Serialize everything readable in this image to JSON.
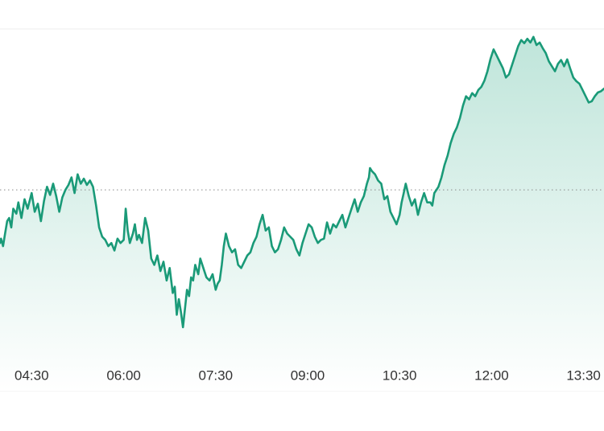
{
  "chart_data": {
    "type": "area",
    "title": "",
    "xlabel": "",
    "ylabel": "",
    "x_ticks": [
      "04:30",
      "06:00",
      "07:30",
      "09:00",
      "10:30",
      "12:00",
      "13:30"
    ],
    "x_domain": [
      "03:59",
      "13:50"
    ],
    "reference_line": {
      "style": "dotted",
      "value": 0
    },
    "y_range": [
      -265,
      250
    ],
    "grid": false,
    "legend": "none",
    "colors": {
      "line": "#1a9a78",
      "fill_top": "#bfe5da",
      "fill_bottom": "#ffffff",
      "reference": "#8a8a8a",
      "frame": "#ececec",
      "ticks": "#333333"
    },
    "series": [
      {
        "points": [
          [
            "03:59",
            -85
          ],
          [
            "04:00",
            -78
          ],
          [
            "04:02",
            -90
          ],
          [
            "04:04",
            -70
          ],
          [
            "04:06",
            -50
          ],
          [
            "04:08",
            -45
          ],
          [
            "04:10",
            -60
          ],
          [
            "04:12",
            -30
          ],
          [
            "04:15",
            -38
          ],
          [
            "04:17",
            -20
          ],
          [
            "04:20",
            -45
          ],
          [
            "04:23",
            -15
          ],
          [
            "04:26",
            -30
          ],
          [
            "04:30",
            -5
          ],
          [
            "04:33",
            -35
          ],
          [
            "04:36",
            -22
          ],
          [
            "04:39",
            -50
          ],
          [
            "04:42",
            -18
          ],
          [
            "04:45",
            5
          ],
          [
            "04:48",
            -8
          ],
          [
            "04:51",
            10
          ],
          [
            "04:54",
            -10
          ],
          [
            "04:57",
            -35
          ],
          [
            "05:00",
            -12
          ],
          [
            "05:03",
            0
          ],
          [
            "05:06",
            8
          ],
          [
            "05:09",
            20
          ],
          [
            "05:12",
            -5
          ],
          [
            "05:15",
            25
          ],
          [
            "05:18",
            10
          ],
          [
            "05:21",
            18
          ],
          [
            "05:24",
            8
          ],
          [
            "05:27",
            15
          ],
          [
            "05:30",
            5
          ],
          [
            "05:33",
            -25
          ],
          [
            "05:36",
            -60
          ],
          [
            "05:39",
            -75
          ],
          [
            "05:42",
            -80
          ],
          [
            "05:45",
            -90
          ],
          [
            "05:48",
            -85
          ],
          [
            "05:51",
            -97
          ],
          [
            "05:54",
            -78
          ],
          [
            "05:57",
            -85
          ],
          [
            "06:00",
            -80
          ],
          [
            "06:02",
            -30
          ],
          [
            "06:04",
            -65
          ],
          [
            "06:06",
            -85
          ],
          [
            "06:09",
            -70
          ],
          [
            "06:11",
            -55
          ],
          [
            "06:13",
            -80
          ],
          [
            "06:15",
            -72
          ],
          [
            "06:18",
            -85
          ],
          [
            "06:21",
            -45
          ],
          [
            "06:24",
            -65
          ],
          [
            "06:27",
            -110
          ],
          [
            "06:30",
            -120
          ],
          [
            "06:33",
            -105
          ],
          [
            "06:36",
            -130
          ],
          [
            "06:39",
            -115
          ],
          [
            "06:42",
            -145
          ],
          [
            "06:45",
            -125
          ],
          [
            "06:48",
            -165
          ],
          [
            "06:50",
            -155
          ],
          [
            "06:52",
            -200
          ],
          [
            "06:54",
            -175
          ],
          [
            "06:56",
            -195
          ],
          [
            "06:58",
            -220
          ],
          [
            "07:00",
            -190
          ],
          [
            "07:02",
            -160
          ],
          [
            "07:04",
            -170
          ],
          [
            "07:06",
            -140
          ],
          [
            "07:08",
            -145
          ],
          [
            "07:10",
            -120
          ],
          [
            "07:13",
            -135
          ],
          [
            "07:15",
            -110
          ],
          [
            "07:18",
            -125
          ],
          [
            "07:21",
            -140
          ],
          [
            "07:24",
            -145
          ],
          [
            "07:27",
            -135
          ],
          [
            "07:30",
            -160
          ],
          [
            "07:32",
            -150
          ],
          [
            "07:34",
            -145
          ],
          [
            "07:36",
            -120
          ],
          [
            "07:38",
            -90
          ],
          [
            "07:40",
            -70
          ],
          [
            "07:43",
            -90
          ],
          [
            "07:46",
            -100
          ],
          [
            "07:49",
            -95
          ],
          [
            "07:52",
            -120
          ],
          [
            "07:55",
            -125
          ],
          [
            "07:58",
            -115
          ],
          [
            "08:01",
            -105
          ],
          [
            "08:04",
            -100
          ],
          [
            "08:07",
            -85
          ],
          [
            "08:10",
            -75
          ],
          [
            "08:13",
            -55
          ],
          [
            "08:16",
            -40
          ],
          [
            "08:19",
            -65
          ],
          [
            "08:22",
            -60
          ],
          [
            "08:25",
            -90
          ],
          [
            "08:28",
            -100
          ],
          [
            "08:31",
            -95
          ],
          [
            "08:34",
            -80
          ],
          [
            "08:37",
            -60
          ],
          [
            "08:40",
            -70
          ],
          [
            "08:43",
            -75
          ],
          [
            "08:46",
            -80
          ],
          [
            "08:49",
            -95
          ],
          [
            "08:52",
            -105
          ],
          [
            "08:55",
            -85
          ],
          [
            "08:58",
            -70
          ],
          [
            "09:01",
            -55
          ],
          [
            "09:04",
            -60
          ],
          [
            "09:07",
            -75
          ],
          [
            "09:10",
            -85
          ],
          [
            "09:13",
            -80
          ],
          [
            "09:16",
            -78
          ],
          [
            "09:19",
            -52
          ],
          [
            "09:22",
            -70
          ],
          [
            "09:25",
            -55
          ],
          [
            "09:28",
            -60
          ],
          [
            "09:31",
            -50
          ],
          [
            "09:34",
            -40
          ],
          [
            "09:37",
            -60
          ],
          [
            "09:40",
            -45
          ],
          [
            "09:43",
            -30
          ],
          [
            "09:46",
            -15
          ],
          [
            "09:49",
            -35
          ],
          [
            "09:52",
            -20
          ],
          [
            "09:55",
            -10
          ],
          [
            "09:58",
            10
          ],
          [
            "10:00",
            20
          ],
          [
            "10:01",
            35
          ],
          [
            "10:03",
            30
          ],
          [
            "10:06",
            25
          ],
          [
            "10:09",
            15
          ],
          [
            "10:12",
            10
          ],
          [
            "10:15",
            -15
          ],
          [
            "10:18",
            -10
          ],
          [
            "10:21",
            -35
          ],
          [
            "10:24",
            -45
          ],
          [
            "10:27",
            -55
          ],
          [
            "10:30",
            -40
          ],
          [
            "10:32",
            -20
          ],
          [
            "10:34",
            -5
          ],
          [
            "10:36",
            10
          ],
          [
            "10:39",
            -10
          ],
          [
            "10:42",
            -25
          ],
          [
            "10:45",
            -15
          ],
          [
            "10:48",
            -40
          ],
          [
            "10:51",
            -20
          ],
          [
            "10:54",
            -5
          ],
          [
            "10:57",
            -20
          ],
          [
            "11:00",
            -20
          ],
          [
            "11:02",
            -25
          ],
          [
            "11:04",
            -5
          ],
          [
            "11:06",
            0
          ],
          [
            "11:08",
            5
          ],
          [
            "11:11",
            20
          ],
          [
            "11:14",
            40
          ],
          [
            "11:17",
            55
          ],
          [
            "11:20",
            75
          ],
          [
            "11:23",
            90
          ],
          [
            "11:26",
            100
          ],
          [
            "11:29",
            115
          ],
          [
            "11:32",
            135
          ],
          [
            "11:35",
            150
          ],
          [
            "11:38",
            145
          ],
          [
            "11:41",
            155
          ],
          [
            "11:44",
            150
          ],
          [
            "11:47",
            160
          ],
          [
            "11:50",
            165
          ],
          [
            "11:53",
            175
          ],
          [
            "11:56",
            190
          ],
          [
            "11:59",
            210
          ],
          [
            "12:02",
            225
          ],
          [
            "12:05",
            215
          ],
          [
            "12:08",
            205
          ],
          [
            "12:11",
            195
          ],
          [
            "12:14",
            180
          ],
          [
            "12:17",
            185
          ],
          [
            "12:20",
            200
          ],
          [
            "12:23",
            215
          ],
          [
            "12:26",
            230
          ],
          [
            "12:29",
            240
          ],
          [
            "12:32",
            235
          ],
          [
            "12:35",
            242
          ],
          [
            "12:38",
            236
          ],
          [
            "12:41",
            245
          ],
          [
            "12:44",
            232
          ],
          [
            "12:47",
            236
          ],
          [
            "12:50",
            227
          ],
          [
            "12:53",
            219
          ],
          [
            "12:56",
            206
          ],
          [
            "12:59",
            198
          ],
          [
            "13:02",
            190
          ],
          [
            "13:05",
            202
          ],
          [
            "13:08",
            208
          ],
          [
            "13:11",
            198
          ],
          [
            "13:14",
            209
          ],
          [
            "13:17",
            194
          ],
          [
            "13:20",
            180
          ],
          [
            "13:23",
            174
          ],
          [
            "13:26",
            170
          ],
          [
            "13:29",
            160
          ],
          [
            "13:32",
            150
          ],
          [
            "13:35",
            140
          ],
          [
            "13:38",
            142
          ],
          [
            "13:41",
            150
          ],
          [
            "13:44",
            156
          ],
          [
            "13:47",
            158
          ],
          [
            "13:50",
            162
          ]
        ]
      }
    ]
  }
}
